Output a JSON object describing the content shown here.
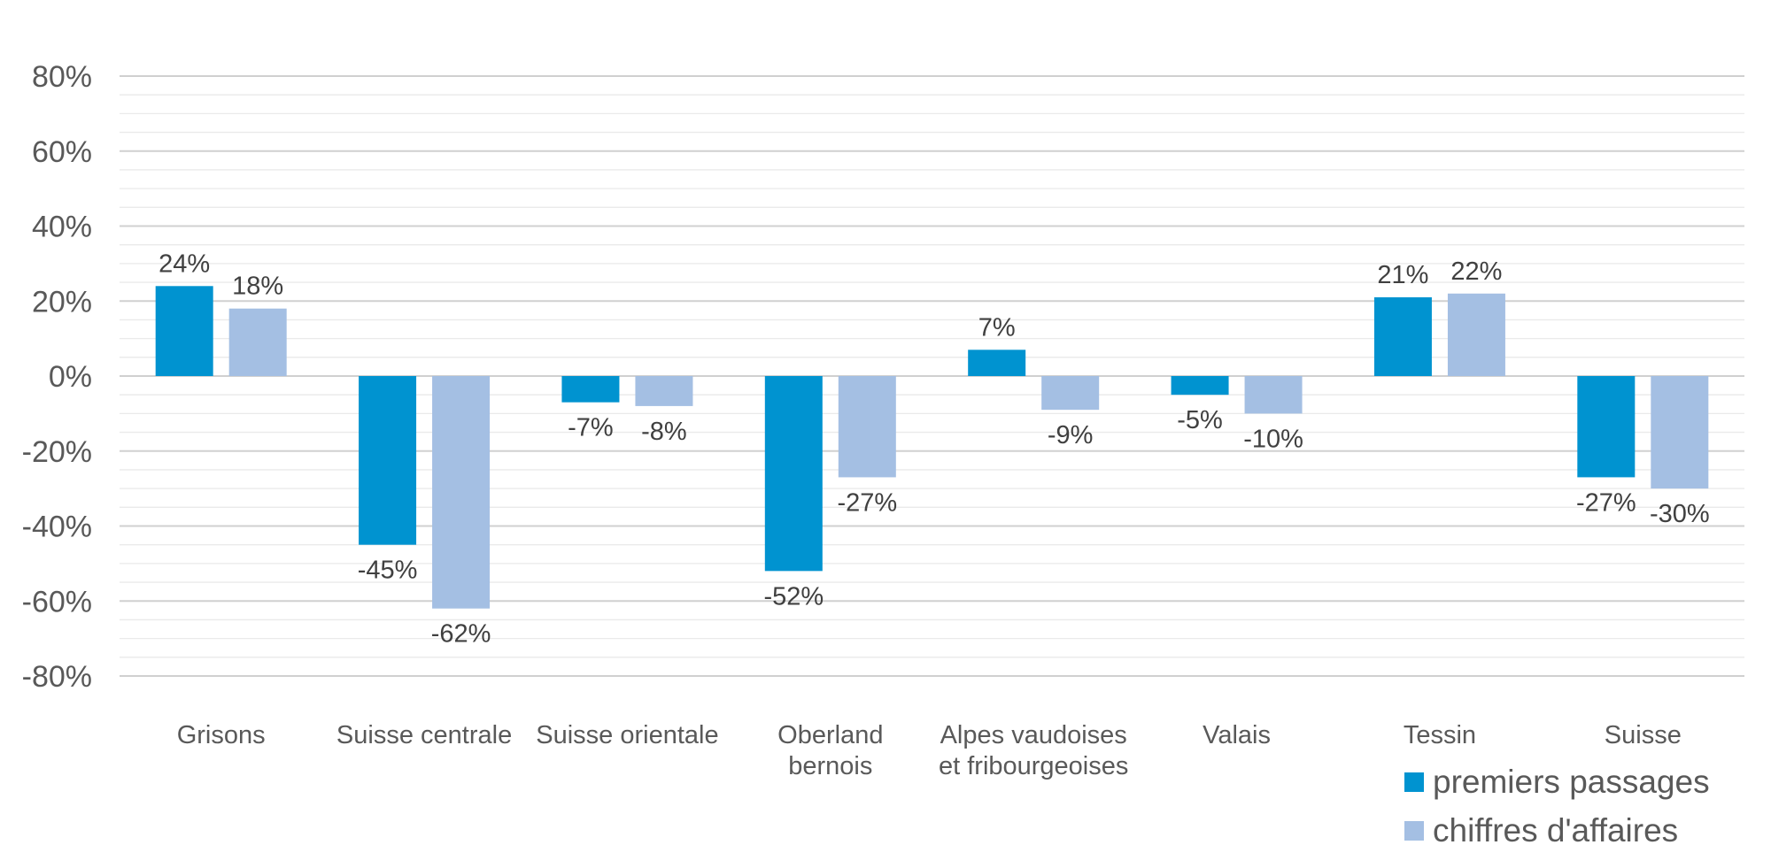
{
  "chart_data": {
    "type": "bar",
    "title": "",
    "xlabel": "",
    "ylabel": "",
    "ylim": [
      -80,
      80
    ],
    "yticks": [
      80,
      60,
      40,
      20,
      0,
      -20,
      -40,
      -60,
      -80
    ],
    "ytick_labels": [
      "80%",
      "60%",
      "40%",
      "20%",
      "0%",
      "-20%",
      "-40%",
      "-60%",
      "-80%"
    ],
    "minor_grid_step": 5,
    "grid": true,
    "legend_position": "bottom-right",
    "categories": [
      [
        "Grisons"
      ],
      [
        "Suisse centrale"
      ],
      [
        "Suisse orientale"
      ],
      [
        "Oberland",
        "bernois"
      ],
      [
        "Alpes vaudoises",
        "et fribourgeoises"
      ],
      [
        "Valais"
      ],
      [
        "Tessin"
      ],
      [
        "Suisse"
      ]
    ],
    "series": [
      {
        "name": "premiers passages",
        "color": "#0093d0",
        "values": [
          24,
          -45,
          -7,
          -52,
          7,
          -5,
          21,
          -27
        ],
        "labels": [
          "24%",
          "-45%",
          "-7%",
          "-52%",
          "7%",
          "-5%",
          "21%",
          "-27%"
        ]
      },
      {
        "name": "chiffres d'affaires",
        "color": "#a4bfe3",
        "values": [
          18,
          -62,
          -8,
          -27,
          -9,
          -10,
          22,
          -30
        ],
        "labels": [
          "18%",
          "-62%",
          "-8%",
          "-27%",
          "-9%",
          "-10%",
          "22%",
          "-30%"
        ]
      }
    ]
  }
}
